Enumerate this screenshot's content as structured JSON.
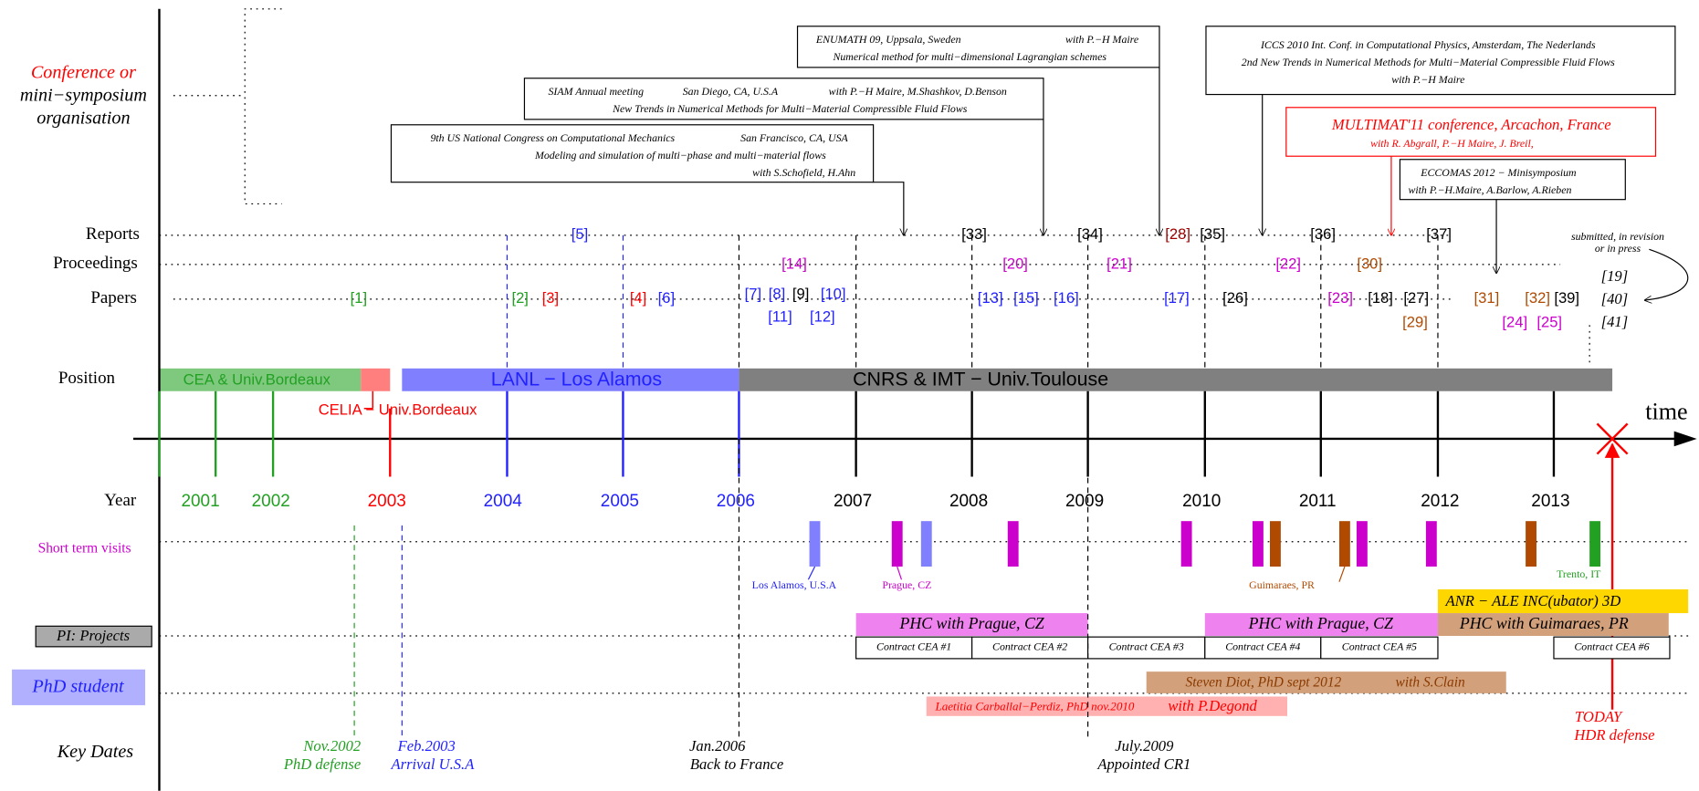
{
  "row_labels": {
    "conference": [
      "Conference or",
      "mini−symposium",
      "organisation"
    ],
    "reports": "Reports",
    "proceedings": "Proceedings",
    "papers": "Papers",
    "position": "Position",
    "time": "time",
    "year": "Year",
    "visits": "Short term visits",
    "projects": "PI: Projects",
    "phd": "PhD student",
    "key_dates": "Key Dates"
  },
  "conferences": [
    {
      "lines": [
        "ENUMATH 09, Uppsala, Sweden",
        "with P.−H Maire",
        "Numerical method for multi−dimensional Lagrangian schemes"
      ]
    },
    {
      "lines": [
        "SIAM Annual meeting",
        "San Diego, CA, U.S.A",
        "with P.−H Maire, M.Shashkov, D.Benson",
        "New Trends in Numerical Methods for Multi−Material Compressible Fluid Flows"
      ]
    },
    {
      "lines": [
        "9th US National Congress on Computational Mechanics",
        "San Francisco, CA, USA",
        "Modeling and simulation of multi−phase and multi−material flows",
        "with S.Schofield, H.Ahn"
      ]
    },
    {
      "lines": [
        "ICCS 2010 Int. Conf. in Computational Physics, Amsterdam, The Nederlands",
        "2nd New Trends in Numerical Methods for Multi−Material Compressible Fluid Flows",
        "with P.−H Maire"
      ]
    },
    {
      "lines": [
        "MULTIMAT'11 conference, Arcachon,  France",
        "with R. Abgrall, P.−H Maire, J. Breil,"
      ]
    },
    {
      "lines": [
        "ECCOMAS 2012 − Minisymposium",
        "with P.−H.Maire, A.Barlow, A.Rieben"
      ]
    }
  ],
  "reports": [
    "[5]",
    "[33]",
    "[34]",
    "[28]",
    "[35]",
    "[36]",
    "[37]"
  ],
  "proceedings": [
    "[14]",
    "[20]",
    "[21]",
    "[22]",
    "[30]"
  ],
  "papers": [
    "[1]",
    "[2]",
    "[3]",
    "[4]",
    "[6]",
    "[7]",
    "[8]",
    "[9]",
    "[10]",
    "[11]",
    "[12]",
    "[13]",
    "[15]",
    "[16]",
    "[17]",
    "[26]",
    "[23]",
    "[18]",
    "[27]",
    "[29]",
    "[31]",
    "[32]",
    "[39]",
    "[24]",
    "[25]"
  ],
  "submitted": {
    "note": [
      "submitted, in revision",
      "or in press"
    ],
    "items": [
      "[19]",
      "[40]",
      "[41]"
    ]
  },
  "positions": [
    "CEA & Univ.Bordeaux",
    "CELIA − Univ.Bordeaux",
    "LANL − Los Alamos",
    "CNRS & IMT − Univ.Toulouse"
  ],
  "years": [
    "2001",
    "2002",
    "2003",
    "2004",
    "2005",
    "2006",
    "2007",
    "2008",
    "2009",
    "2010",
    "2011",
    "2012",
    "2013"
  ],
  "visits": [
    "Los Alamos, U.S.A",
    "Prague, CZ",
    "Guimaraes, PR",
    "Trento, IT"
  ],
  "projects": [
    "ANR − ALE INC(ubator) 3D",
    "PHC with Prague, CZ",
    "PHC with Prague, CZ",
    "PHC with Guimaraes, PR"
  ],
  "contracts": [
    "Contract CEA #1",
    "Contract CEA #2",
    "Contract CEA #3",
    "Contract CEA #4",
    "Contract CEA #5",
    "Contract CEA #6"
  ],
  "phd": [
    {
      "lines": [
        "Steven Diot, PhD sept 2012",
        "with S.Clain"
      ]
    },
    {
      "lines": [
        "Laetitia Carballal−Perdiz, PhD nov.2010",
        "with P.Degond"
      ]
    }
  ],
  "key_dates": [
    {
      "lines": [
        "Nov.2002",
        "PhD defense"
      ]
    },
    {
      "lines": [
        "Feb.2003",
        "Arrival U.S.A"
      ]
    },
    {
      "lines": [
        "Jan.2006",
        "Back to France"
      ]
    },
    {
      "lines": [
        "July.2009",
        "Appointed CR1"
      ]
    },
    {
      "lines": [
        "TODAY",
        "HDR defense"
      ]
    }
  ]
}
